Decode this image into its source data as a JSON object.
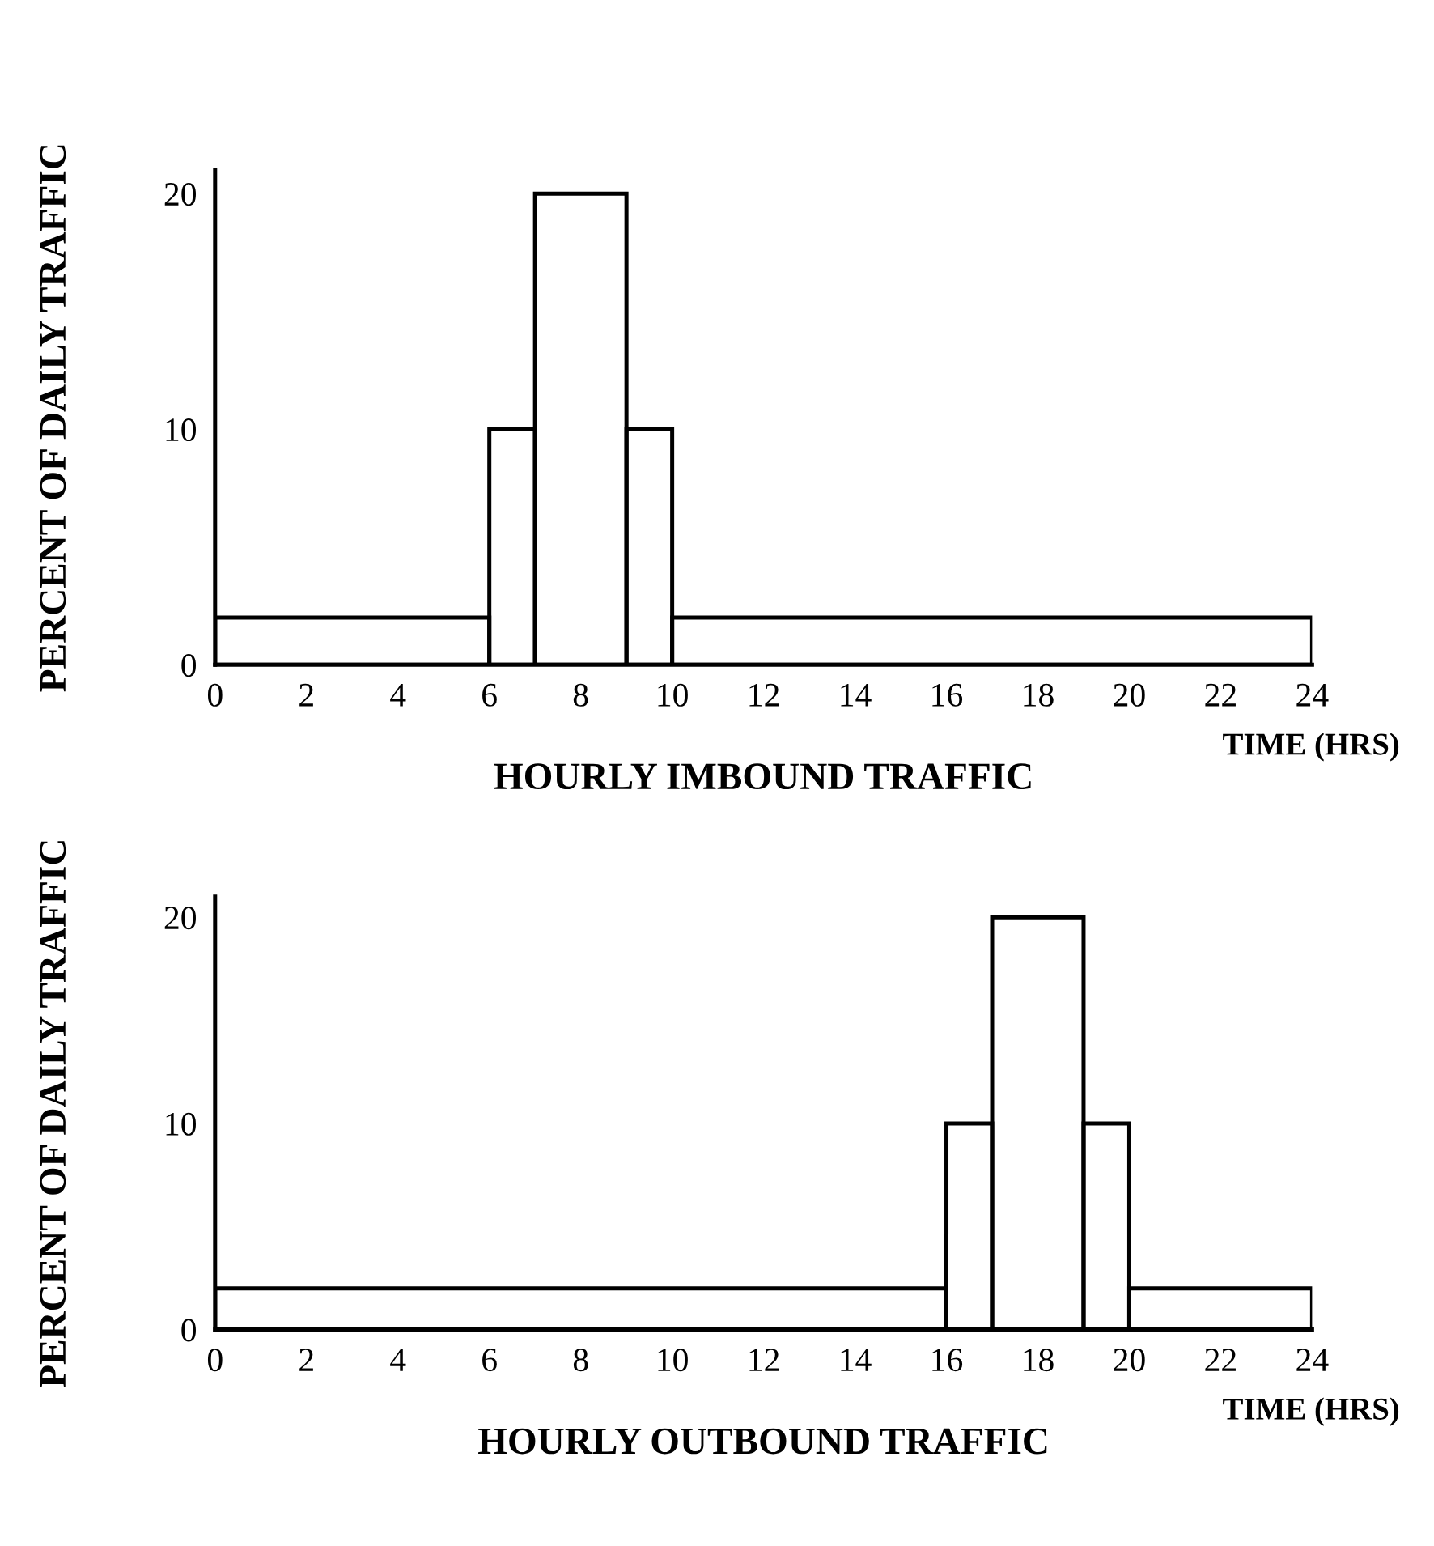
{
  "chart_data": [
    {
      "type": "histogram",
      "title": "HOURLY IMBOUND TRAFFIC",
      "xlabel": "TIME (HRS)",
      "ylabel": "PERCENT OF DAILY TRAFFIC",
      "bins": [
        0,
        6,
        7,
        9,
        10,
        24
      ],
      "values": [
        2,
        10,
        20,
        10,
        2
      ],
      "color": "#000000",
      "xlim": [
        0,
        24
      ],
      "xticks": [
        0,
        2,
        4,
        6,
        8,
        10,
        12,
        14,
        16,
        18,
        20,
        22,
        24
      ],
      "ylim": [
        0,
        21
      ],
      "yticks": [
        0,
        10,
        20
      ],
      "grid": false
    },
    {
      "type": "histogram",
      "title": "HOURLY OUTBOUND TRAFFIC",
      "xlabel": "TIME (HRS)",
      "ylabel": "PERCENT OF DAILY TRAFFIC",
      "bins": [
        0,
        16,
        17,
        19,
        20,
        24
      ],
      "values": [
        2,
        10,
        20,
        10,
        2
      ],
      "color": "#000000",
      "xlim": [
        0,
        24
      ],
      "xticks": [
        0,
        2,
        4,
        6,
        8,
        10,
        12,
        14,
        16,
        18,
        20,
        22,
        24
      ],
      "ylim": [
        0,
        21
      ],
      "yticks": [
        0,
        10,
        20
      ],
      "grid": false
    }
  ]
}
